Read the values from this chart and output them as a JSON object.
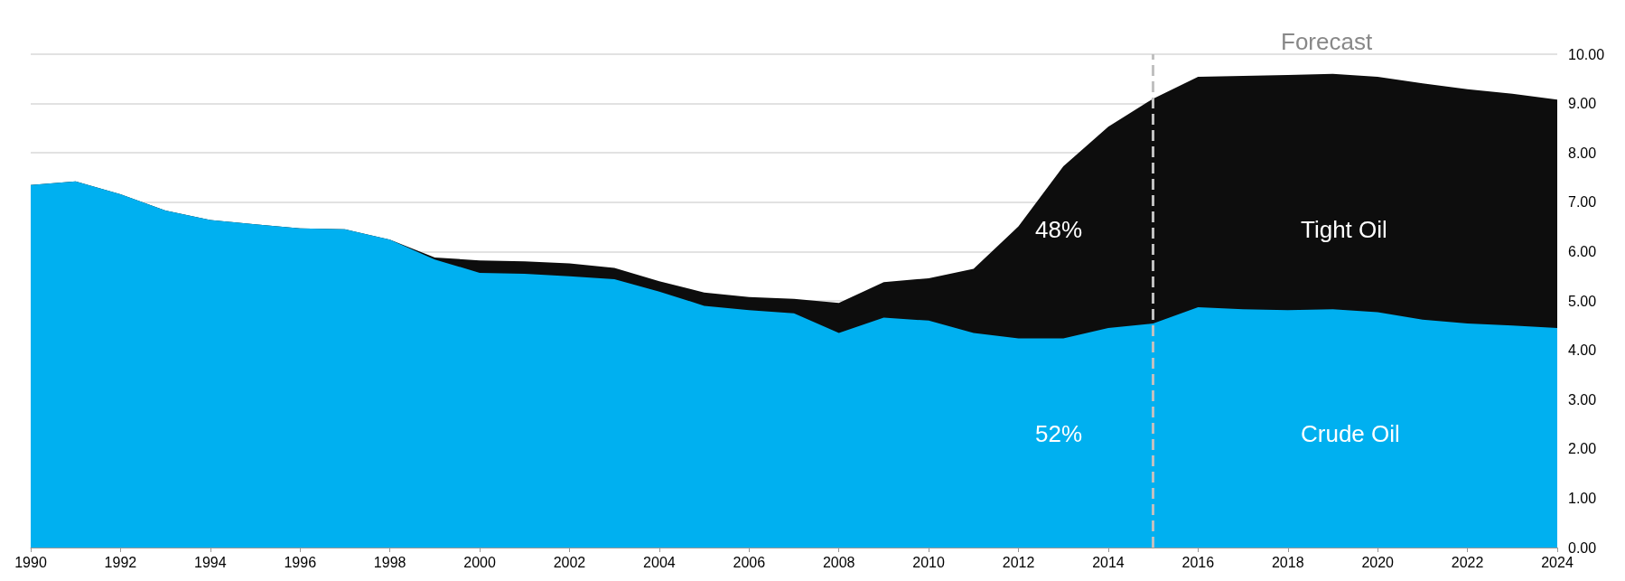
{
  "chart_data": {
    "type": "area",
    "stacked": true,
    "x": [
      1990,
      1991,
      1992,
      1993,
      1994,
      1995,
      1996,
      1997,
      1998,
      1999,
      2000,
      2001,
      2002,
      2003,
      2004,
      2005,
      2006,
      2007,
      2008,
      2009,
      2010,
      2011,
      2012,
      2013,
      2014,
      2015,
      2016,
      2017,
      2018,
      2019,
      2020,
      2021,
      2022,
      2023,
      2024
    ],
    "series": [
      {
        "color": "#00b0f0",
        "values": [
          7.35,
          7.42,
          7.16,
          6.83,
          6.64,
          6.55,
          6.47,
          6.45,
          6.24,
          5.84,
          5.57,
          5.55,
          5.5,
          5.44,
          5.19,
          4.9,
          4.81,
          4.75,
          4.35,
          4.66,
          4.6,
          4.35,
          4.24,
          4.24,
          4.45,
          4.54,
          4.87,
          4.83,
          4.81,
          4.83,
          4.77,
          4.62,
          4.54,
          4.5,
          4.45
        ]
      },
      {
        "color": "#0d0d0d",
        "values": [
          0,
          0,
          0,
          0,
          0,
          0,
          0,
          0,
          0,
          0.04,
          0.25,
          0.25,
          0.26,
          0.23,
          0.21,
          0.27,
          0.27,
          0.29,
          0.61,
          0.72,
          0.86,
          1.3,
          2.27,
          3.49,
          4.08,
          4.56,
          4.67,
          4.73,
          4.77,
          4.77,
          4.77,
          4.79,
          4.75,
          4.7,
          4.63
        ]
      }
    ],
    "xlim": [
      1990,
      2024
    ],
    "xticks": [
      1990,
      1992,
      1994,
      1996,
      1998,
      2000,
      2002,
      2004,
      2006,
      2008,
      2010,
      2012,
      2014,
      2016,
      2018,
      2020,
      2022,
      2024
    ],
    "ylim": [
      0,
      10
    ],
    "yticks": [
      {
        "value": 0,
        "label": "0.00"
      },
      {
        "value": 1,
        "label": "1.00"
      },
      {
        "value": 2,
        "label": "2.00"
      },
      {
        "value": 3,
        "label": "3.00"
      },
      {
        "value": 4,
        "label": "4.00"
      },
      {
        "value": 5,
        "label": "5.00"
      },
      {
        "value": 6,
        "label": "6.00"
      },
      {
        "value": 7,
        "label": "7.00"
      },
      {
        "value": 8,
        "label": "8.00"
      },
      {
        "value": 9,
        "label": "9.00"
      },
      {
        "value": 10,
        "label": "10.00"
      }
    ],
    "grid": "y",
    "marker": "none",
    "ref_lines": [
      {
        "axis": "x",
        "value": 2015,
        "color": "#c0c0c0",
        "line_style": "dashed"
      }
    ],
    "annotations": [
      "Forecast",
      "48%",
      "52%",
      "Tight Oil",
      "Crude Oil"
    ]
  }
}
